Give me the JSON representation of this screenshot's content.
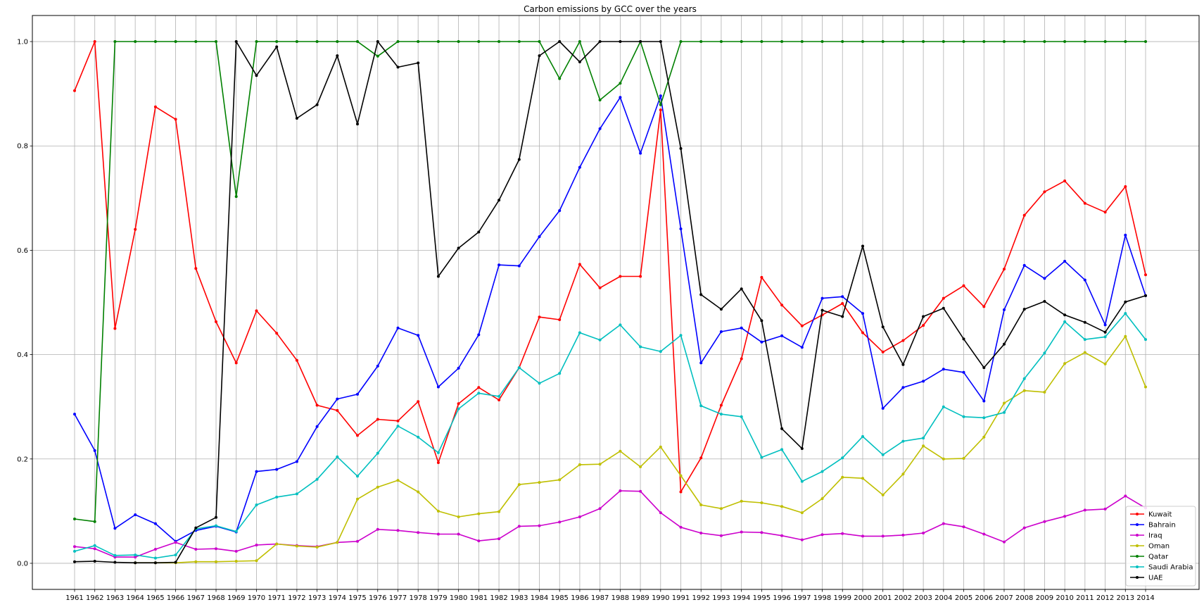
{
  "chart_data": {
    "type": "line",
    "title": "Carbon emissions by GCC over the years",
    "xlabel": "",
    "ylabel": "",
    "ylim": [
      -0.05,
      1.05
    ],
    "yticks": [
      "0.0",
      "0.2",
      "0.4",
      "0.6",
      "0.8",
      "1.0"
    ],
    "ytick_values": [
      0.0,
      0.2,
      0.4,
      0.6,
      0.8,
      1.0
    ],
    "grid": true,
    "legend_position": "bottom-right",
    "categories": [
      "1961",
      "1962",
      "1963",
      "1964",
      "1965",
      "1966",
      "1967",
      "1968",
      "1969",
      "1970",
      "1971",
      "1972",
      "1973",
      "1974",
      "1975",
      "1976",
      "1977",
      "1978",
      "1979",
      "1980",
      "1981",
      "1982",
      "1983",
      "1984",
      "1985",
      "1986",
      "1987",
      "1988",
      "1989",
      "1990",
      "1991",
      "1992",
      "1993",
      "1994",
      "1995",
      "1996",
      "1997",
      "1998",
      "1999",
      "2000",
      "2001",
      "2002",
      "2003",
      "2004",
      "2005",
      "2006",
      "2007",
      "2008",
      "2009",
      "2010",
      "2011",
      "2012",
      "2013",
      "2014"
    ],
    "series": [
      {
        "name": "Kuwait",
        "color": "#ff0000",
        "values": [
          0.906,
          1.0,
          0.45,
          0.64,
          0.875,
          0.851,
          0.565,
          0.463,
          0.384,
          0.484,
          0.441,
          0.389,
          0.303,
          0.293,
          0.245,
          0.276,
          0.273,
          0.31,
          0.193,
          0.306,
          0.337,
          0.313,
          0.375,
          0.472,
          0.467,
          0.573,
          0.528,
          0.55,
          0.55,
          0.869,
          0.137,
          0.202,
          0.303,
          0.392,
          0.548,
          0.495,
          0.455,
          0.476,
          0.498,
          0.442,
          0.405,
          0.427,
          0.456,
          0.508,
          0.532,
          0.492,
          0.564,
          0.667,
          0.712,
          0.733,
          0.69,
          0.673,
          0.722,
          0.553
        ]
      },
      {
        "name": "Bahrain",
        "color": "#0000ff",
        "values": [
          0.286,
          0.216,
          0.067,
          0.093,
          0.076,
          0.042,
          0.063,
          0.071,
          0.06,
          0.176,
          0.18,
          0.195,
          0.262,
          0.315,
          0.324,
          0.378,
          0.451,
          0.437,
          0.338,
          0.374,
          0.438,
          0.572,
          0.57,
          0.626,
          0.676,
          0.759,
          0.833,
          0.893,
          0.786,
          0.896,
          0.641,
          0.384,
          0.444,
          0.451,
          0.424,
          0.436,
          0.414,
          0.508,
          0.511,
          0.479,
          0.297,
          0.337,
          0.349,
          0.372,
          0.366,
          0.311,
          0.486,
          0.571,
          0.546,
          0.579,
          0.543,
          0.457,
          0.629,
          0.513
        ]
      },
      {
        "name": "Iraq",
        "color": "#cc00cc",
        "values": [
          0.032,
          0.028,
          0.012,
          0.012,
          0.027,
          0.04,
          0.027,
          0.028,
          0.023,
          0.035,
          0.037,
          0.034,
          0.032,
          0.04,
          0.042,
          0.065,
          0.063,
          0.059,
          0.056,
          0.056,
          0.043,
          0.047,
          0.071,
          0.072,
          0.079,
          0.089,
          0.105,
          0.139,
          0.138,
          0.097,
          0.069,
          0.058,
          0.053,
          0.06,
          0.059,
          0.053,
          0.045,
          0.055,
          0.057,
          0.052,
          0.052,
          0.054,
          0.058,
          0.076,
          0.07,
          0.056,
          0.041,
          0.068,
          0.08,
          0.09,
          0.102,
          0.104,
          0.129,
          0.106
        ]
      },
      {
        "name": "Oman",
        "color": "#bfbf00",
        "values": [
          null,
          null,
          null,
          0.001,
          0.001,
          0.001,
          0.003,
          0.003,
          0.004,
          0.005,
          0.037,
          0.033,
          0.031,
          0.04,
          0.123,
          0.146,
          0.159,
          0.137,
          0.1,
          0.089,
          0.095,
          0.099,
          0.151,
          0.155,
          0.16,
          0.189,
          0.19,
          0.215,
          0.185,
          0.223,
          0.168,
          0.112,
          0.105,
          0.119,
          0.116,
          0.109,
          0.097,
          0.124,
          0.165,
          0.163,
          0.131,
          0.171,
          0.225,
          0.2,
          0.201,
          0.242,
          0.307,
          0.331,
          0.328,
          0.383,
          0.404,
          0.382,
          0.435,
          0.338
        ]
      },
      {
        "name": "Qatar",
        "color": "#008000",
        "values": [
          0.085,
          0.08,
          1.0,
          1.0,
          1.0,
          1.0,
          1.0,
          1.0,
          0.703,
          1.0,
          1.0,
          1.0,
          1.0,
          1.0,
          1.0,
          0.972,
          1.0,
          1.0,
          1.0,
          1.0,
          1.0,
          1.0,
          1.0,
          1.0,
          0.929,
          1.0,
          0.888,
          0.92,
          1.0,
          0.879,
          1.0,
          1.0,
          1.0,
          1.0,
          1.0,
          1.0,
          1.0,
          1.0,
          1.0,
          1.0,
          1.0,
          1.0,
          1.0,
          1.0,
          1.0,
          1.0,
          1.0,
          1.0,
          1.0,
          1.0,
          1.0,
          1.0,
          1.0,
          1.0
        ]
      },
      {
        "name": "Saudi Arabia",
        "color": "#00bfbf",
        "values": [
          0.023,
          0.034,
          0.015,
          0.016,
          0.01,
          0.016,
          0.066,
          0.072,
          0.061,
          0.112,
          0.127,
          0.133,
          0.161,
          0.204,
          0.167,
          0.211,
          0.263,
          0.242,
          0.212,
          0.296,
          0.326,
          0.32,
          0.375,
          0.345,
          0.364,
          0.442,
          0.428,
          0.457,
          0.415,
          0.406,
          0.437,
          0.302,
          0.286,
          0.281,
          0.203,
          0.218,
          0.157,
          0.176,
          0.202,
          0.243,
          0.208,
          0.234,
          0.24,
          0.3,
          0.281,
          0.279,
          0.289,
          0.354,
          0.403,
          0.463,
          0.429,
          0.434,
          0.479,
          0.429
        ]
      },
      {
        "name": "UAE",
        "color": "#000000",
        "values": [
          0.003,
          0.004,
          0.002,
          0.001,
          0.001,
          0.002,
          0.068,
          0.088,
          1.0,
          0.935,
          0.99,
          0.853,
          0.879,
          0.973,
          0.842,
          1.0,
          0.951,
          0.959,
          0.55,
          0.604,
          0.635,
          0.696,
          0.774,
          0.973,
          1.0,
          0.961,
          1.0,
          1.0,
          1.0,
          1.0,
          0.795,
          0.515,
          0.487,
          0.526,
          0.465,
          0.258,
          0.22,
          0.485,
          0.473,
          0.608,
          0.453,
          0.381,
          0.473,
          0.489,
          0.43,
          0.375,
          0.42,
          0.487,
          0.502,
          0.476,
          0.462,
          0.443,
          0.501,
          0.513
        ]
      }
    ]
  }
}
